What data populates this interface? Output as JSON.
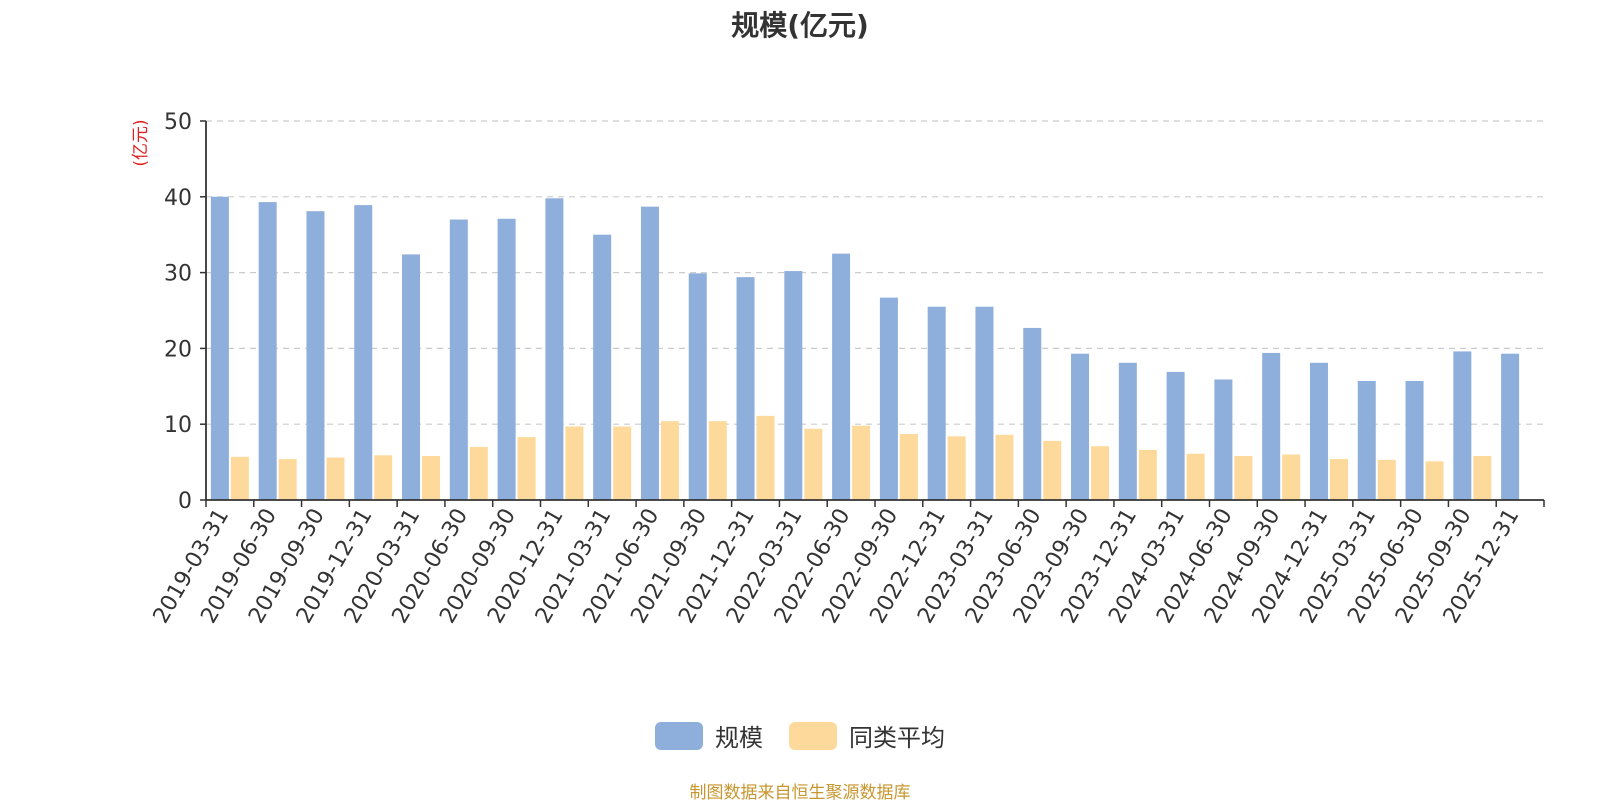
{
  "chart_data": {
    "type": "bar",
    "title": "规模(亿元)",
    "ylabel": "(亿元)",
    "ylim": [
      0,
      50
    ],
    "yticks": [
      0,
      10,
      20,
      30,
      40,
      50
    ],
    "grid": true,
    "legend_position": "bottom",
    "categories": [
      "2019-03-31",
      "2019-06-30",
      "2019-09-30",
      "2019-12-31",
      "2020-03-31",
      "2020-06-30",
      "2020-09-30",
      "2020-12-31",
      "2021-03-31",
      "2021-06-30",
      "2021-09-30",
      "2021-12-31",
      "2022-03-31",
      "2022-06-30",
      "2022-09-30",
      "2022-12-31",
      "2023-03-31",
      "2023-06-30",
      "2023-09-30",
      "2023-12-31",
      "2024-03-31",
      "2024-06-30",
      "2024-09-30",
      "2024-12-31",
      "2025-03-31",
      "2025-06-30",
      "2025-09-30",
      "2025-12-31"
    ],
    "series": [
      {
        "name": "规模",
        "color": "#8eaedb",
        "values": [
          40.0,
          39.3,
          38.1,
          38.9,
          32.4,
          37.0,
          37.1,
          39.8,
          35.0,
          38.7,
          29.9,
          29.4,
          30.2,
          32.5,
          26.7,
          25.5,
          25.5,
          22.7,
          19.3,
          18.1,
          16.9,
          15.9,
          19.4,
          18.1,
          15.7,
          15.7,
          19.6,
          19.3
        ]
      },
      {
        "name": "同类平均",
        "color": "#fdd99b",
        "values": [
          5.7,
          5.4,
          5.6,
          5.9,
          5.8,
          7.0,
          8.3,
          9.7,
          9.7,
          10.4,
          10.4,
          11.1,
          9.4,
          9.8,
          8.7,
          8.4,
          8.6,
          7.8,
          7.1,
          6.6,
          6.1,
          5.8,
          6.0,
          5.4,
          5.3,
          5.1,
          5.8,
          null
        ]
      }
    ],
    "source_note": "制图数据来自恒生聚源数据库"
  }
}
